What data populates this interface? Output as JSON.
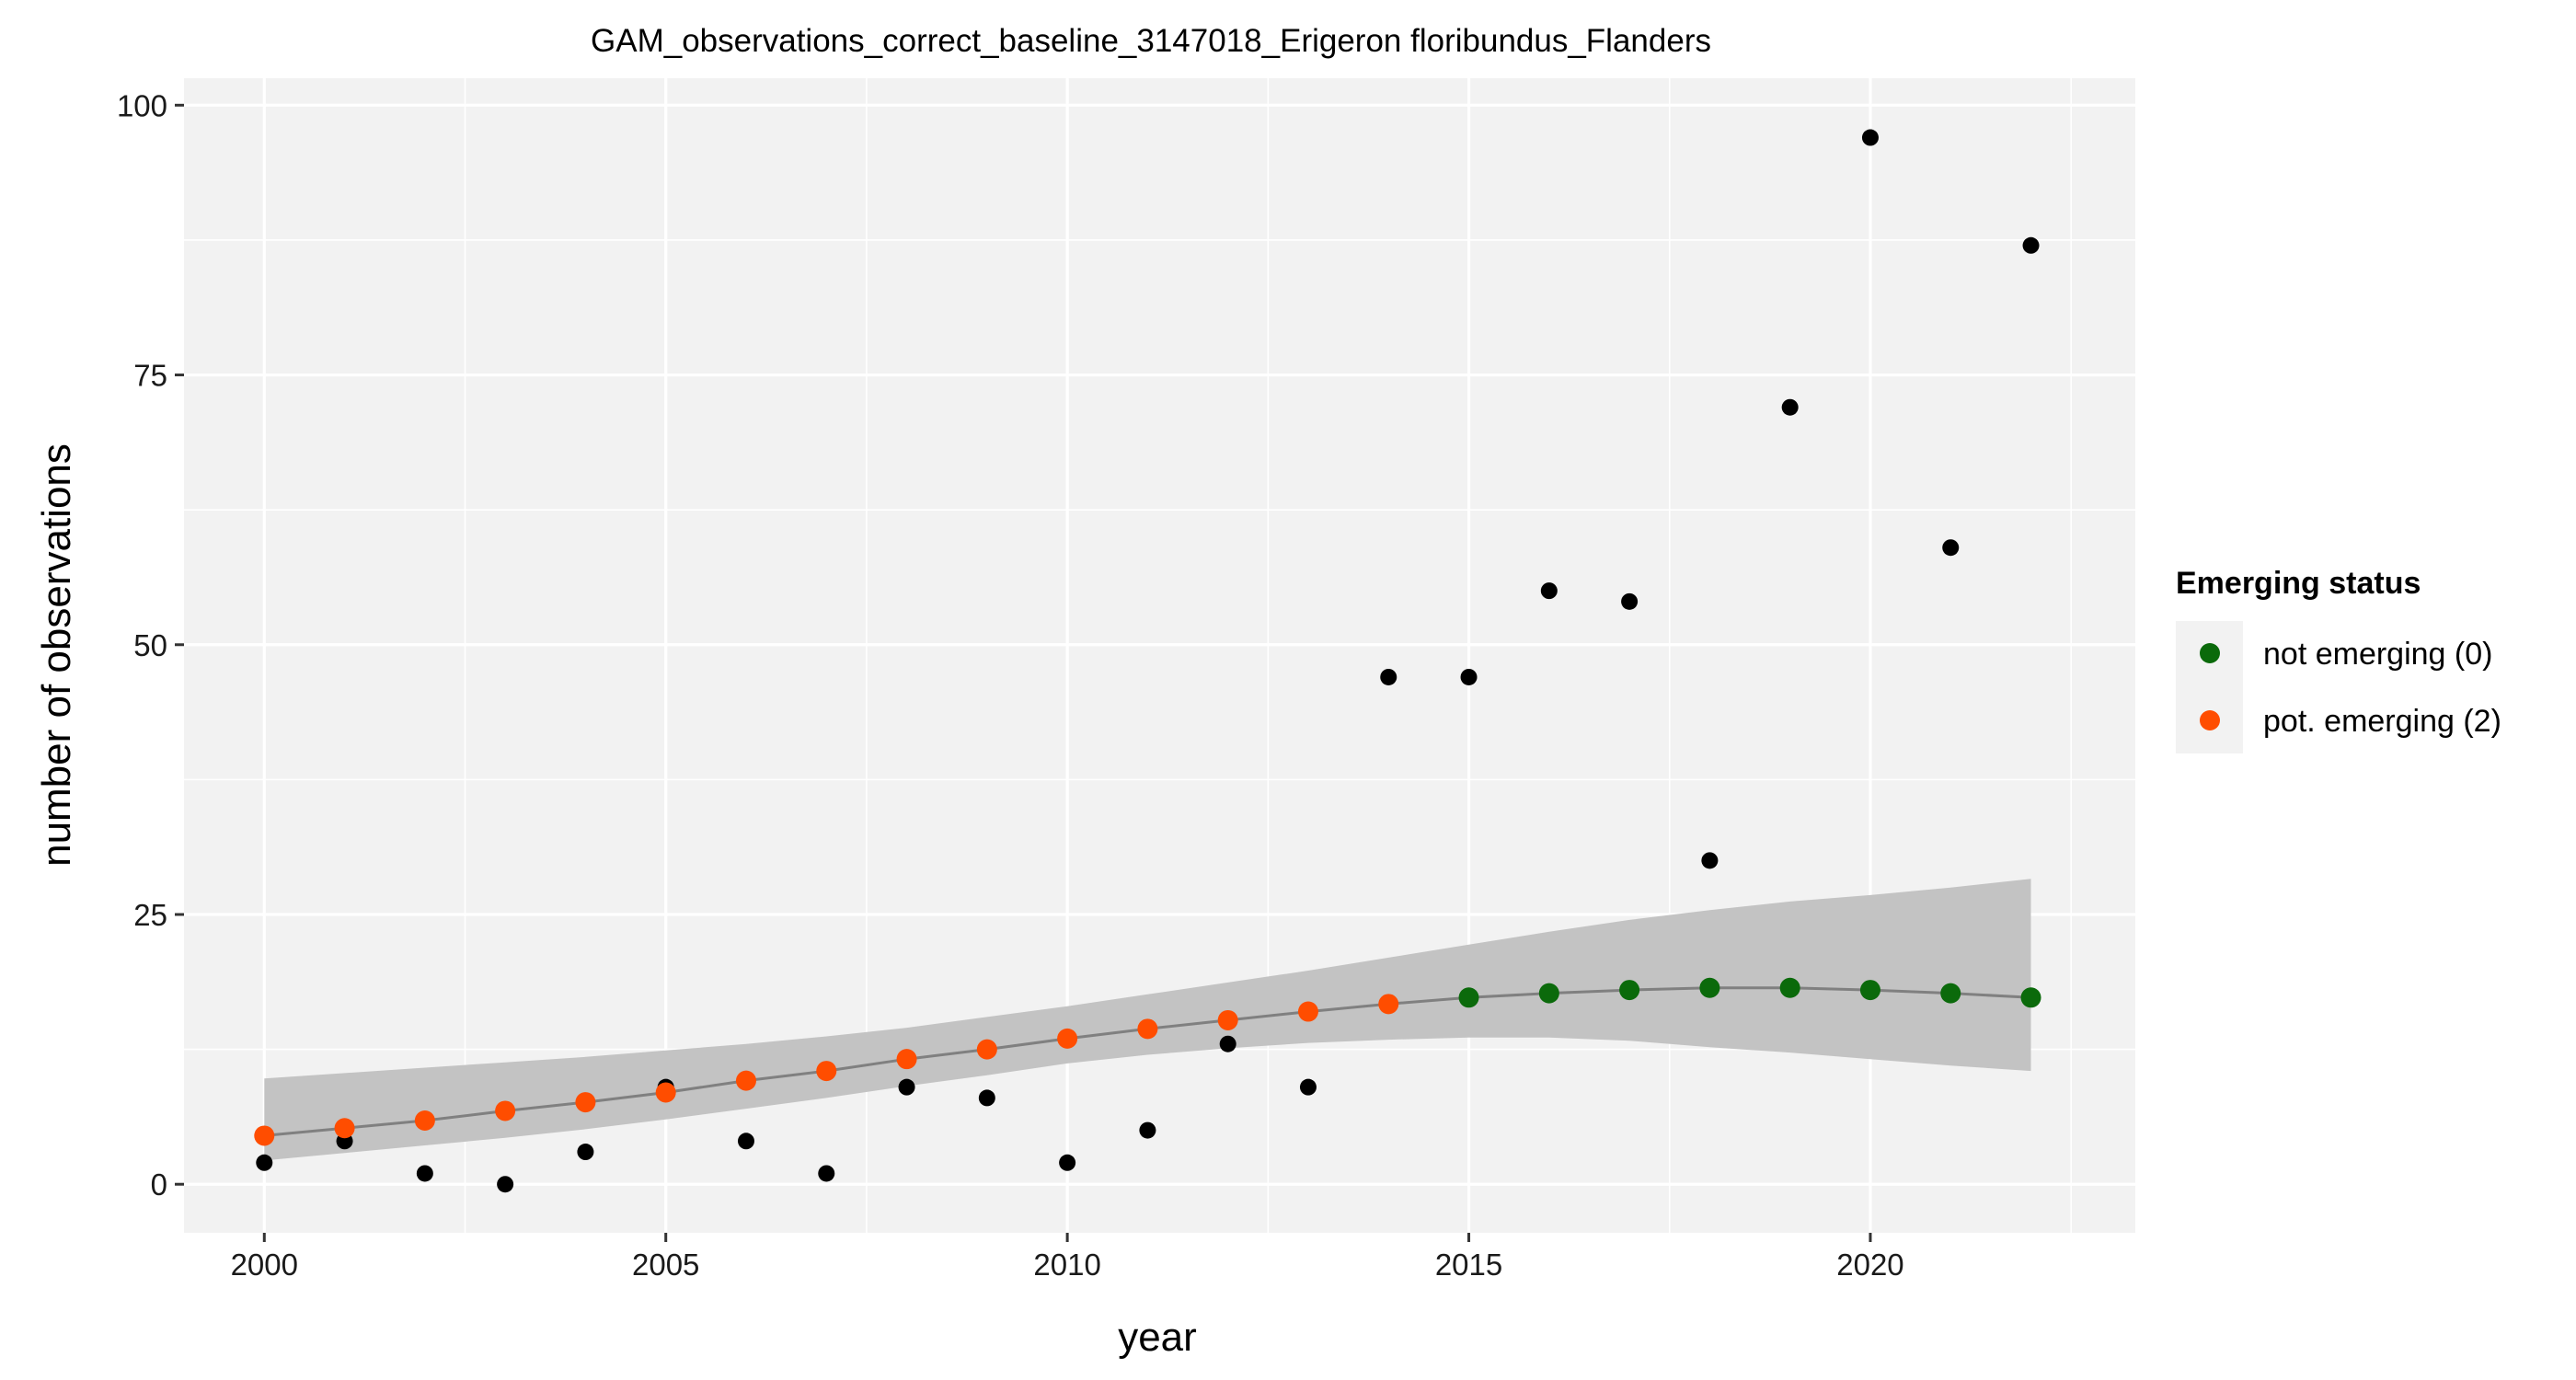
{
  "chart_data": {
    "type": "scatter",
    "title": "GAM_observations_correct_baseline_3147018_Erigeron floribundus_Flanders",
    "xlabel": "year",
    "ylabel": "number of observations",
    "xlim": [
      1999,
      2023.3
    ],
    "ylim": [
      -4.5,
      102.5
    ],
    "x_ticks": [
      2000,
      2005,
      2010,
      2015,
      2020
    ],
    "x_tick_labels": [
      "2000",
      "2005",
      "2010",
      "2015",
      "2020"
    ],
    "y_ticks": [
      0,
      25,
      50,
      75,
      100
    ],
    "y_tick_labels": [
      "0",
      "25",
      "50",
      "75",
      "100"
    ],
    "grid": true,
    "legend_position": "right",
    "colors": {
      "panel": "#f2f2f2",
      "grid": "#ffffff",
      "observed": "#000000",
      "fit_line": "#808080",
      "ribbon": "#c3c3c3",
      "not_emerging": "#0b6a0b",
      "pot_emerging": "#ff4d00"
    },
    "observed": {
      "x": [
        2000,
        2001,
        2002,
        2003,
        2004,
        2005,
        2006,
        2007,
        2008,
        2009,
        2010,
        2011,
        2012,
        2013,
        2014,
        2015,
        2016,
        2017,
        2018,
        2019,
        2020,
        2021,
        2022
      ],
      "y": [
        2,
        4,
        1,
        0,
        3,
        9,
        4,
        1,
        9,
        8,
        2,
        5,
        13,
        9,
        47,
        47,
        55,
        54,
        30,
        72,
        97,
        59,
        87
      ]
    },
    "fit": {
      "x": [
        2000,
        2001,
        2002,
        2003,
        2004,
        2005,
        2006,
        2007,
        2008,
        2009,
        2010,
        2011,
        2012,
        2013,
        2014,
        2015,
        2016,
        2017,
        2018,
        2019,
        2020,
        2021,
        2022
      ],
      "y": [
        4.5,
        5.2,
        5.9,
        6.8,
        7.6,
        8.5,
        9.6,
        10.5,
        11.6,
        12.5,
        13.5,
        14.4,
        15.2,
        16.0,
        16.7,
        17.3,
        17.7,
        18.0,
        18.2,
        18.2,
        18.0,
        17.7,
        17.3
      ],
      "lower": [
        2.2,
        2.9,
        3.6,
        4.3,
        5.1,
        6.0,
        7.0,
        8.0,
        9.1,
        10.1,
        11.2,
        12.0,
        12.6,
        13.1,
        13.4,
        13.6,
        13.6,
        13.3,
        12.7,
        12.2,
        11.6,
        11.0,
        10.5
      ],
      "upper": [
        9.8,
        10.3,
        10.8,
        11.3,
        11.8,
        12.4,
        13.0,
        13.7,
        14.5,
        15.5,
        16.5,
        17.6,
        18.7,
        19.8,
        21.0,
        22.2,
        23.4,
        24.5,
        25.4,
        26.2,
        26.8,
        27.5,
        28.3
      ],
      "status": [
        2,
        2,
        2,
        2,
        2,
        2,
        2,
        2,
        2,
        2,
        2,
        2,
        2,
        2,
        2,
        0,
        0,
        0,
        0,
        0,
        0,
        0,
        0
      ]
    },
    "legend": {
      "title": "Emerging status",
      "entries": [
        {
          "label": "not emerging (0)",
          "status": 0,
          "color": "#0b6a0b"
        },
        {
          "label": "pot. emerging (2)",
          "status": 2,
          "color": "#ff4d00"
        }
      ]
    }
  }
}
